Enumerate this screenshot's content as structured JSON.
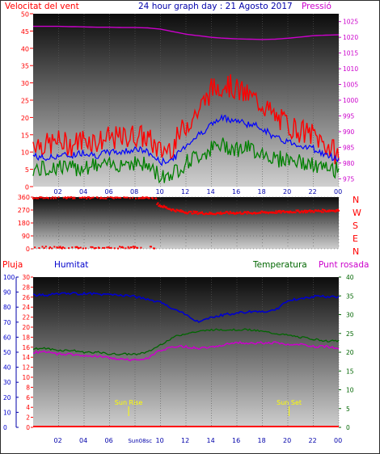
{
  "colors": {
    "wind_avg": "#0000ff",
    "wind_gust": "#ff0000",
    "wind_min": "#008000",
    "pressure": "#cc00cc",
    "direction": "#ff0000",
    "rain": "#ff0000",
    "humidity": "#0000cc",
    "temperature": "#006600",
    "dewpoint": "#cc00cc",
    "sun_marker": "#ffff00",
    "axis_tick": "#0000aa"
  },
  "chart_data": [
    {
      "type": "line",
      "title": "24 hour graph day : 21 Agosto 2017",
      "left_label": "Velocitat del vent",
      "right_label": "Pressió",
      "x_ticks": [
        "02",
        "04",
        "06",
        "08",
        "10",
        "12",
        "14",
        "16",
        "18",
        "20",
        "22",
        "00"
      ],
      "y_left_ticks": [
        "0",
        "5",
        "10",
        "15",
        "20",
        "25",
        "30",
        "35",
        "40",
        "45",
        "50"
      ],
      "y_right_ticks": [
        "975",
        "980",
        "985",
        "990",
        "995",
        "1000",
        "1005",
        "1010",
        "1015",
        "1020",
        "1025"
      ],
      "ylim_left": [
        0,
        50
      ],
      "ylim_right": [
        972.5,
        1027.5
      ],
      "x_hours": [
        0,
        1,
        2,
        3,
        4,
        5,
        6,
        7,
        8,
        9,
        10,
        11,
        12,
        13,
        14,
        15,
        16,
        17,
        18,
        19,
        20,
        21,
        22,
        23,
        24
      ],
      "series": [
        {
          "key": "gust",
          "values": [
            13,
            12,
            13,
            12,
            14,
            13,
            14,
            14,
            15,
            14,
            10,
            12,
            18,
            22,
            28,
            30,
            28,
            26,
            24,
            20,
            18,
            16,
            15,
            12,
            9
          ]
        },
        {
          "key": "avg",
          "values": [
            9,
            8,
            9,
            9,
            10,
            9,
            10,
            10,
            11,
            10,
            7,
            8,
            12,
            15,
            18,
            20,
            19,
            18,
            17,
            14,
            13,
            12,
            11,
            9,
            8
          ]
        },
        {
          "key": "min",
          "values": [
            5,
            5,
            6,
            5,
            6,
            6,
            6,
            7,
            7,
            6,
            3,
            4,
            7,
            9,
            11,
            12,
            11,
            11,
            10,
            8,
            8,
            7,
            6,
            5,
            5
          ]
        },
        {
          "key": "pressure",
          "values": [
            1023.5,
            1023.5,
            1023.5,
            1023.4,
            1023.3,
            1023.2,
            1023.2,
            1023.1,
            1023.1,
            1023,
            1022.6,
            1021.8,
            1021,
            1020.5,
            1020,
            1019.7,
            1019.5,
            1019.4,
            1019.3,
            1019.4,
            1019.7,
            1020.1,
            1020.5,
            1020.7,
            1020.8
          ]
        }
      ]
    },
    {
      "type": "scatter",
      "series_name": "direction",
      "left_ticks": [
        "360",
        "270",
        "180",
        "90",
        "0"
      ],
      "right_letters": [
        "N",
        "W",
        "S",
        "E",
        "N"
      ],
      "ylim": [
        0,
        360
      ],
      "x_hours": [
        0,
        1,
        2,
        3,
        4,
        5,
        6,
        7,
        8,
        9,
        10,
        11,
        12,
        13,
        14,
        15,
        16,
        17,
        18,
        19,
        20,
        21,
        22,
        23,
        24
      ],
      "values": [
        355,
        5,
        355,
        10,
        5,
        10,
        350,
        5,
        350,
        355,
        300,
        270,
        255,
        250,
        245,
        250,
        250,
        250,
        252,
        255,
        258,
        260,
        262,
        265,
        268
      ]
    },
    {
      "type": "line",
      "legend": [
        "Pluja",
        "Humitat",
        "Temperatura",
        "Punt rosada"
      ],
      "x_ticks": [
        "02",
        "04",
        "06",
        "08",
        "10",
        "12",
        "14",
        "16",
        "18",
        "20",
        "22",
        "00"
      ],
      "humidity_ticks": [
        "0",
        "10",
        "20",
        "30",
        "40",
        "50",
        "60",
        "70",
        "80",
        "90",
        "100"
      ],
      "rain_ticks": [
        "0",
        "2",
        "4",
        "6",
        "8",
        "10",
        "12",
        "14",
        "16",
        "18",
        "20",
        "22",
        "24",
        "26",
        "28",
        "30"
      ],
      "temp_ticks": [
        "0",
        "5",
        "10",
        "15",
        "20",
        "25",
        "30",
        "35",
        "40"
      ],
      "ylim_humidity": [
        0,
        100
      ],
      "ylim_rain": [
        0,
        30
      ],
      "ylim_temp": [
        0,
        40
      ],
      "x_hours": [
        0,
        1,
        2,
        3,
        4,
        5,
        6,
        7,
        8,
        9,
        10,
        11,
        12,
        13,
        14,
        15,
        16,
        17,
        18,
        19,
        20,
        21,
        22,
        23,
        24
      ],
      "series": [
        {
          "key": "humidity",
          "values": [
            88,
            88,
            89,
            89,
            89,
            89,
            88,
            88,
            87,
            85,
            83,
            79,
            75,
            70,
            73,
            75,
            76,
            77,
            77,
            78,
            84,
            86,
            87,
            87,
            87
          ]
        },
        {
          "key": "temperature",
          "values": [
            21,
            21,
            20.5,
            20.5,
            20,
            20,
            19.5,
            19.5,
            19.5,
            20,
            22,
            24,
            25,
            25.5,
            26,
            26,
            26,
            26,
            25.5,
            25,
            24.5,
            24,
            23.5,
            23,
            23
          ]
        },
        {
          "key": "dewpoint",
          "values": [
            20,
            20,
            19.5,
            19.5,
            19,
            19,
            18.5,
            18,
            18,
            18.5,
            20.5,
            21.5,
            21.5,
            21,
            21.5,
            22,
            22.5,
            22.5,
            22.5,
            22.5,
            22,
            22,
            21.5,
            21.5,
            21
          ]
        },
        {
          "key": "rain",
          "values": [
            0,
            0,
            0,
            0,
            0,
            0,
            0,
            0,
            0,
            0,
            0,
            0,
            0,
            0,
            0,
            0,
            0,
            0,
            0,
            0,
            0,
            0,
            0,
            0,
            0
          ]
        }
      ],
      "annotations": [
        {
          "label": "Sun Rise",
          "hour": 7.5
        },
        {
          "label": "Sun Set",
          "hour": 20.1
        }
      ],
      "axis_marker": "Sun08sc"
    }
  ]
}
